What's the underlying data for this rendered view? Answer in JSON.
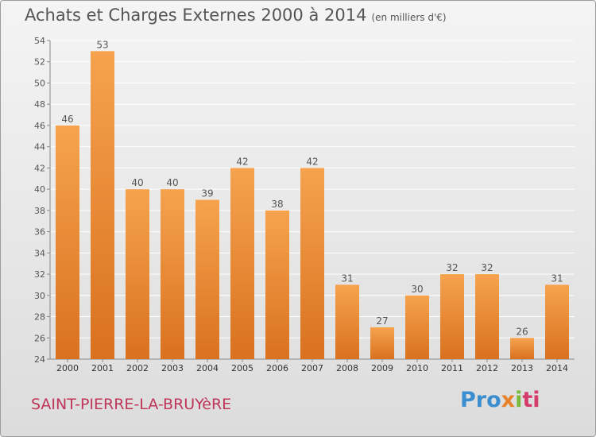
{
  "header": {
    "title": "Achats et Charges Externes 2000 à 2014",
    "unit": "(en milliers d'€)"
  },
  "footer": {
    "town": "SAINT-PIERRE-LA-BRUYèRE",
    "logo": [
      "Pro",
      "x",
      "i",
      "ti"
    ]
  },
  "colors": {
    "bar_top": "#f6a34e",
    "bar_bottom": "#d9711f",
    "label": "#555555",
    "grid": "#ffffff"
  },
  "chart_data": {
    "type": "bar",
    "title": "Achats et Charges Externes 2000 à 2014",
    "subtitle": "(en milliers d'€)",
    "categories": [
      "2000",
      "2001",
      "2002",
      "2003",
      "2004",
      "2005",
      "2006",
      "2007",
      "2008",
      "2009",
      "2010",
      "2011",
      "2012",
      "2013",
      "2014"
    ],
    "values": [
      46,
      53,
      40,
      40,
      39,
      42,
      38,
      42,
      31,
      27,
      30,
      32,
      32,
      26,
      31
    ],
    "ylim": [
      24,
      54
    ],
    "yticks": [
      24,
      26,
      28,
      30,
      32,
      34,
      36,
      38,
      40,
      42,
      44,
      46,
      48,
      50,
      52,
      54
    ],
    "grid": true,
    "data_labels": true,
    "legend": "none"
  }
}
